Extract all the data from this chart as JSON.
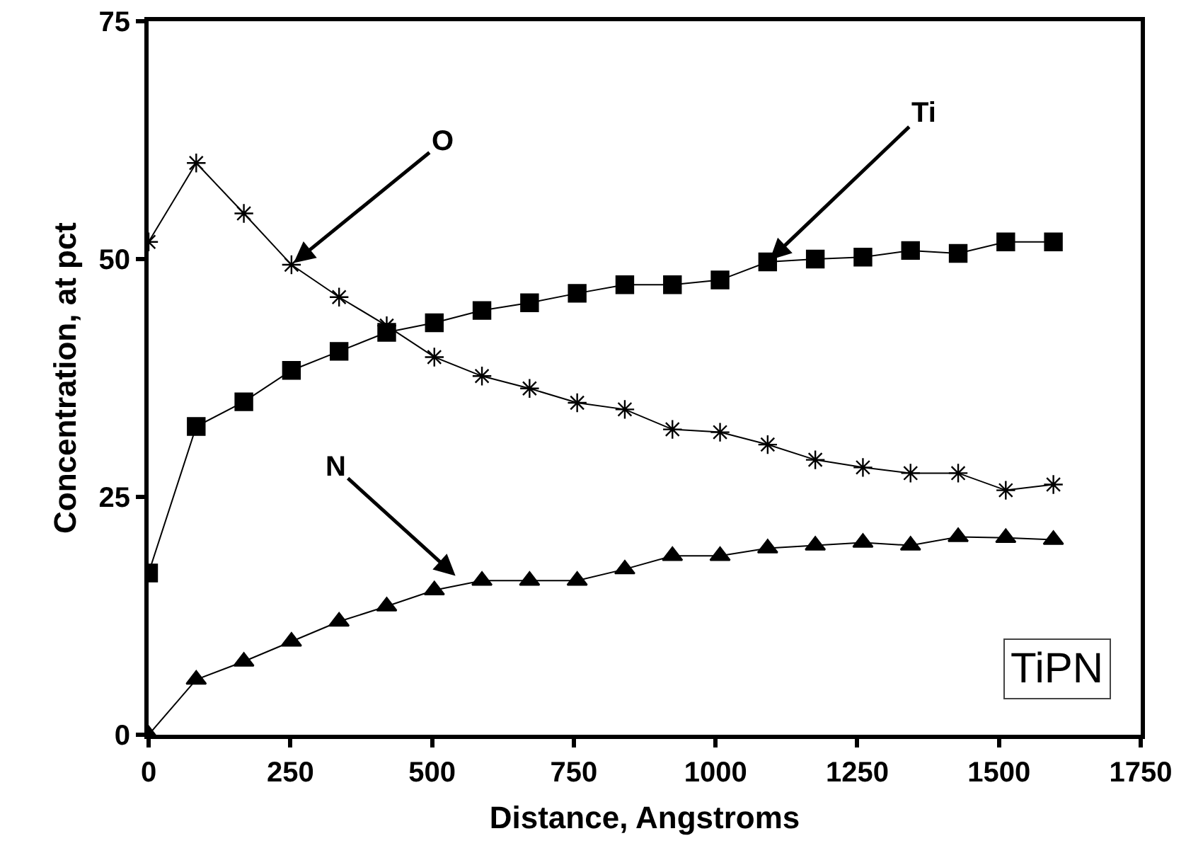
{
  "chart_data": {
    "type": "line",
    "xlabel": "Distance, Angstroms",
    "ylabel": "Concentration, at pct",
    "x": [
      0,
      84,
      168,
      252,
      336,
      420,
      504,
      588,
      672,
      756,
      840,
      924,
      1008,
      1092,
      1176,
      1260,
      1344,
      1428,
      1512,
      1596
    ],
    "series": [
      {
        "color": "#000000",
        "marker": "square",
        "values": [
          17.0,
          32.4,
          35.0,
          38.3,
          40.3,
          42.3,
          43.3,
          44.6,
          45.4,
          46.4,
          47.3,
          47.3,
          47.8,
          49.7,
          50.0,
          50.2,
          50.9,
          50.6,
          51.8,
          51.8
        ]
      },
      {
        "color": "#000000",
        "marker": "cross",
        "values": [
          51.8,
          60.1,
          54.8,
          49.4,
          46.0,
          43.0,
          39.7,
          37.7,
          36.4,
          34.9,
          34.2,
          32.1,
          31.8,
          30.5,
          28.9,
          28.1,
          27.5,
          27.5,
          25.7,
          26.3
        ]
      },
      {
        "color": "#000000",
        "marker": "triangle",
        "values": [
          0,
          5.8,
          7.7,
          9.8,
          11.9,
          13.5,
          15.2,
          16.2,
          16.2,
          16.2,
          17.4,
          18.8,
          18.8,
          19.6,
          19.9,
          20.2,
          19.9,
          20.8,
          20.7,
          20.5
        ]
      }
    ],
    "annotations": [
      {
        "text": "O",
        "x": 252,
        "y": 49.4
      },
      {
        "text": "Ti",
        "x": 1092,
        "y": 49.7
      },
      {
        "text": "N",
        "x": 545,
        "y": 16.5
      },
      "TiPN"
    ],
    "xlim": [
      0,
      1750
    ],
    "xticks": [
      0,
      250,
      500,
      750,
      1000,
      1250,
      1500,
      1750
    ],
    "ylim": [
      0,
      75
    ],
    "yticks": [
      0,
      25,
      50,
      75
    ],
    "grid": false,
    "line_style": "solid"
  }
}
